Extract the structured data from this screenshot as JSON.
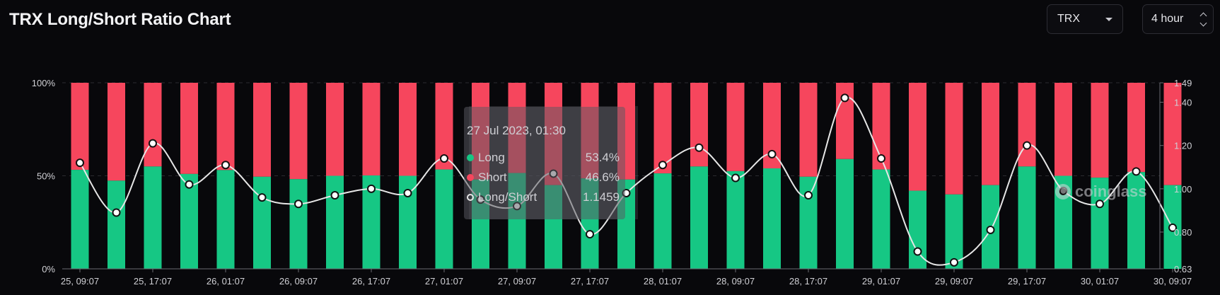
{
  "header": {
    "title": "TRX Long/Short Ratio Chart"
  },
  "controls": {
    "symbol": "TRX",
    "interval": "4 hour"
  },
  "colors": {
    "long": "#16c784",
    "short": "#f6465d",
    "ratio_line": "#e6e6e6",
    "background": "#08080b"
  },
  "tooltip": {
    "date": "27 Jul 2023, 01:30",
    "rows": [
      {
        "label": "Long",
        "value": "53.4%"
      },
      {
        "label": "Short",
        "value": "46.6%"
      },
      {
        "label": "Long/Short",
        "value": "1.1459"
      }
    ]
  },
  "watermark": {
    "text": "coinglass"
  },
  "chart_data": {
    "type": "bar",
    "stacked": true,
    "x_ticks": [
      "25, 09:07",
      "25, 17:07",
      "26, 01:07",
      "26, 09:07",
      "26, 17:07",
      "27, 01:07",
      "27, 09:07",
      "27, 17:07",
      "28, 01:07",
      "28, 09:07",
      "28, 17:07",
      "29, 01:07",
      "29, 09:07",
      "29, 17:07",
      "30, 01:07",
      "30, 09:07"
    ],
    "left_axis": {
      "ticks": [
        "0%",
        "50%",
        "100%"
      ],
      "range": [
        0,
        100
      ]
    },
    "right_axis": {
      "ticks": [
        "0.63",
        "0.80",
        "1.00",
        "1.20",
        "1.40",
        "1.49"
      ],
      "range": [
        0.63,
        1.49
      ]
    },
    "series": [
      {
        "name": "Long",
        "axis": "left",
        "values": [
          53.2,
          47.4,
          55.0,
          51.0,
          53.1,
          49.5,
          48.2,
          50.0,
          50.2,
          50.0,
          53.4,
          48.0,
          51.5,
          45.0,
          48.6,
          48.0,
          51.3,
          55.0,
          52.5,
          54.0,
          49.5,
          59.0,
          53.4,
          42.0,
          40.0,
          45.0,
          55.0,
          50.0,
          49.0,
          52.0,
          45.0
        ]
      },
      {
        "name": "Short",
        "axis": "left",
        "values": [
          46.8,
          52.6,
          45.0,
          49.0,
          46.9,
          50.5,
          51.8,
          50.0,
          49.8,
          50.0,
          46.6,
          52.0,
          48.5,
          55.0,
          51.4,
          52.0,
          48.7,
          45.0,
          47.5,
          46.0,
          50.5,
          41.0,
          46.6,
          58.0,
          60.0,
          55.0,
          45.0,
          50.0,
          51.0,
          48.0,
          55.0
        ]
      },
      {
        "name": "Long/Short",
        "axis": "right",
        "type": "line",
        "values": [
          1.12,
          0.89,
          1.21,
          1.02,
          1.11,
          0.96,
          0.93,
          0.97,
          1.0,
          0.98,
          1.14,
          0.95,
          0.92,
          1.07,
          0.79,
          0.98,
          1.11,
          1.19,
          1.05,
          1.16,
          0.97,
          1.42,
          1.14,
          0.71,
          0.66,
          0.81,
          1.2,
          0.99,
          0.93,
          1.08,
          0.82
        ]
      }
    ]
  }
}
